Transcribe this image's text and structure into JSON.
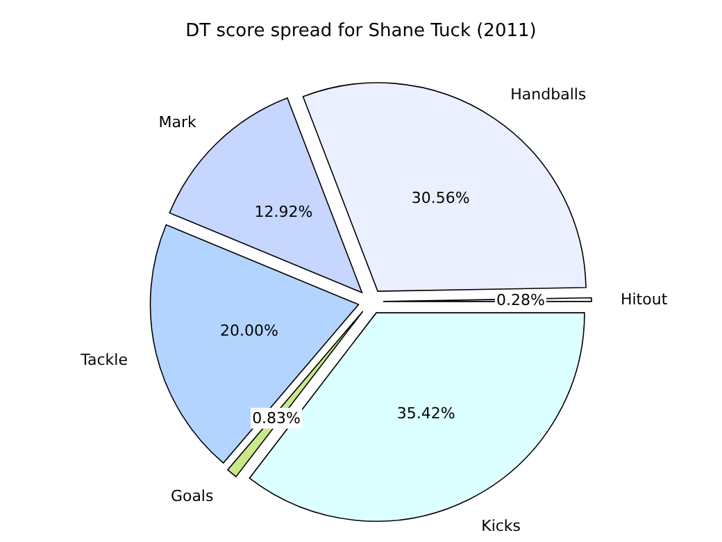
{
  "chart_data": {
    "type": "pie",
    "title": "DT score spread for Shane Tuck (2011)",
    "categories": [
      "Hitout",
      "Handballs",
      "Mark",
      "Tackle",
      "Goals",
      "Kicks"
    ],
    "values": [
      0.28,
      30.56,
      12.92,
      20.0,
      0.83,
      35.42
    ],
    "value_labels": [
      "0.28%",
      "30.56%",
      "12.92%",
      "20.00%",
      "0.83%",
      "35.42%"
    ],
    "colors": [
      "#f4f4ff",
      "#eaf0ff",
      "#c6d6ff",
      "#b3d4ff",
      "#c8e88a",
      "#dcffff"
    ]
  }
}
